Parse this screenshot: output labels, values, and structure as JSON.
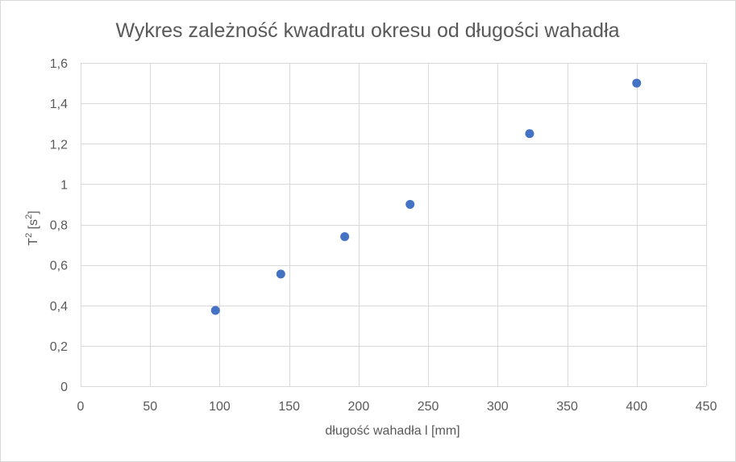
{
  "chart_data": {
    "type": "scatter",
    "title": "Wykres zależność kwadratu okresu od długości wahadła",
    "xlabel": "długość wahadła l [mm]",
    "ylabel": {
      "base": "T",
      "sup": "2",
      "unit_open": " [s",
      "unit_sup": "2",
      "unit_close": "]"
    },
    "xlim": [
      0,
      450
    ],
    "ylim": [
      0,
      1.6
    ],
    "xticks": [
      0,
      50,
      100,
      150,
      200,
      250,
      300,
      350,
      400,
      450
    ],
    "xtick_labels": [
      "0",
      "50",
      "100",
      "150",
      "200",
      "250",
      "300",
      "350",
      "400",
      "450"
    ],
    "yticks": [
      0,
      0.2,
      0.4,
      0.6,
      0.8,
      1,
      1.2,
      1.4,
      1.6
    ],
    "ytick_labels": [
      "0",
      "0,2",
      "0,4",
      "0,6",
      "0,8",
      "1",
      "1,2",
      "1,4",
      "1,6"
    ],
    "grid": true,
    "legend": "none",
    "marker_color": "#4472c4",
    "grid_color": "#d9d9d9",
    "series": [
      {
        "x": [
          97,
          144,
          190,
          237,
          323,
          400
        ],
        "y": [
          0.375,
          0.555,
          0.74,
          0.9,
          1.25,
          1.5
        ]
      }
    ]
  }
}
